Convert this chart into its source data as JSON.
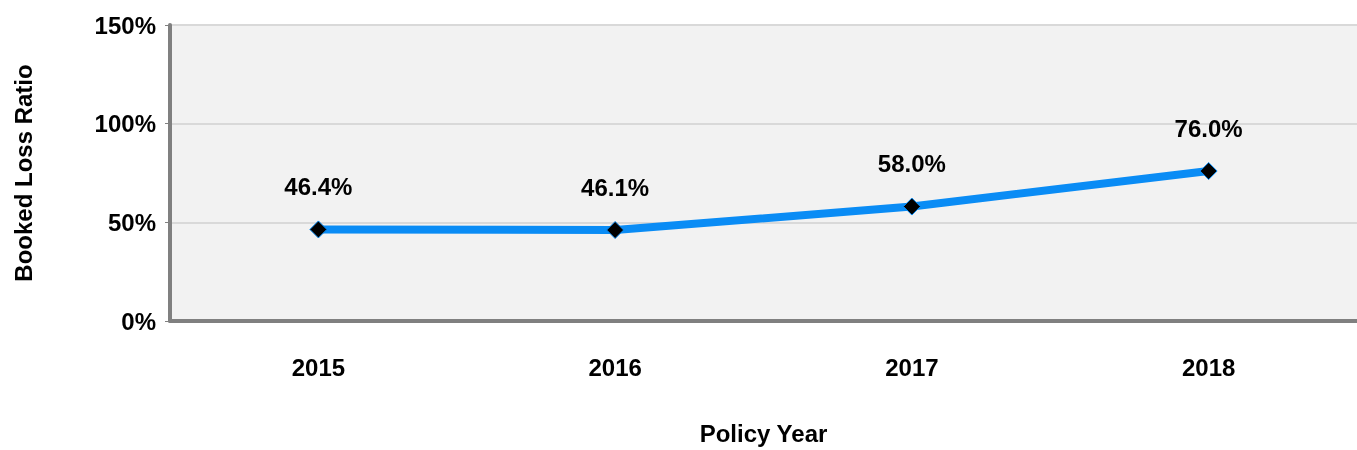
{
  "chart_data": {
    "type": "line",
    "xlabel": "Policy Year",
    "ylabel": "Booked Loss Ratio",
    "categories": [
      "2015",
      "2016",
      "2017",
      "2018"
    ],
    "series": [
      {
        "color": "#0a8cf5",
        "values": [
          46.4,
          46.1,
          58.0,
          76.0
        ],
        "value_labels": [
          "46.4%",
          "46.1%",
          "58.0%",
          "76.0%"
        ]
      }
    ],
    "ylim": [
      0,
      150
    ],
    "yticks": [
      {
        "value": 0,
        "label": "0%"
      },
      {
        "value": 50,
        "label": "50%"
      },
      {
        "value": 100,
        "label": "100%"
      },
      {
        "value": 150,
        "label": "150%"
      }
    ],
    "grid": "y",
    "marker": "diamond",
    "line_style": "solid"
  }
}
